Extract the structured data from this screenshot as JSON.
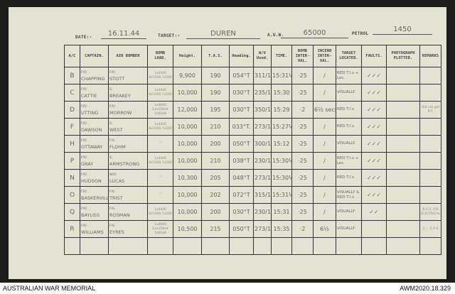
{
  "header": {
    "date_label": "DATE:-",
    "date": "16.11.44",
    "target_label": "TARGET:-",
    "target": "DUREN",
    "auw_label": "A.U.W.",
    "auw": "65000",
    "petrol_label": "PETROL",
    "petrol": "1450"
  },
  "columns": [
    "A/C",
    "CAPTAIN.",
    "AIR BOMBER",
    "BOMB LOAD.",
    "Height.",
    "T.A.S.",
    "Heading.",
    "W/V Used.",
    "TIME.",
    "BOMB INTER-VAL.",
    "INCEND INTER-VAL.",
    "TARGET LOCATED.",
    "FAULTS.",
    "PHOTOGRAPH PLOTTED.",
    "REMARKS"
  ],
  "rows": [
    [
      "B",
      "F/O",
      "CHAPPING",
      "F/O",
      "STOTT",
      "1x4000 6x1000 7x500",
      "9,900",
      "190",
      "054°T",
      "311/10",
      "15:31½",
      "·25",
      "/",
      "RED T.I.s + Loc.",
      "✓✓✓",
      "",
      ""
    ],
    [
      "C",
      "F/O",
      "CATTIE",
      "S.",
      "BREAKEY",
      "1x4000 6x1000 7x500",
      "10,000",
      "190",
      "030°T",
      "235/12",
      "15:30",
      "·25",
      "/",
      "VISUALLY.",
      "✓✓✓",
      "",
      ""
    ],
    [
      "D",
      "F/O",
      "UTTING",
      "F/O",
      "MORROW",
      "1x4000 14x150x4 1x60x9",
      "12,000",
      "195",
      "030°T",
      "350/15",
      "15:29",
      "·2",
      "6½ secs",
      "RED T.I.s",
      "✓✓✓",
      "",
      "Did not get P/T."
    ],
    [
      "F",
      "F/O",
      "DAWSON",
      "S.",
      "WEST",
      "1x4000 6x1000 7x500",
      "10,000",
      "210",
      "033°T.",
      "273/19",
      "15:27½",
      "·25",
      "/",
      "RED T.I.s",
      "✓✓✓",
      "",
      ""
    ],
    [
      "H",
      "F/O",
      "OTTAWAY",
      "F/S",
      "FLOHM",
      "\"",
      "10,000",
      "200",
      "050°T",
      "300/10",
      "15:12",
      "·25",
      "/",
      "VISUALLY.",
      "✓✓✓",
      "",
      ""
    ],
    [
      "P",
      "F/O",
      "GRAY",
      "S.",
      "ARMSTRONG",
      "1x4000 6x1000 7x500",
      "10,000",
      "210",
      "038°T",
      "230/14",
      "15:30½",
      "·25",
      "/",
      "RED T.I.s + Loc.",
      "✓✓✓",
      "",
      ""
    ],
    [
      "N",
      "F/O",
      "HUDSON",
      "W/O",
      "LUCAS",
      "\"",
      "10,300",
      "205",
      "048°T",
      "273/16",
      "15:30½",
      "·25",
      "/",
      "RED T.I.s",
      "✓✓✓",
      "",
      ""
    ],
    [
      "O",
      "F/O",
      "BASKERVILLE",
      "F/S",
      "TRIST",
      "\"",
      "10,000",
      "202",
      "072°T",
      "315/10",
      "15:31½",
      "·25",
      "/",
      "VISUALLY & RED T.I.s",
      "✓✓✓",
      "",
      ""
    ],
    [
      "Q",
      "F/O",
      "BAYLISS",
      "F/S",
      "ROSMAN",
      "1x4000 6x1000 7x500",
      "10,000",
      "200",
      "030°T",
      "230/10",
      "15:31",
      "·25",
      "/",
      "VISUALLY",
      "✓✓",
      "",
      "B.E.S. U/S ELECTRICAL"
    ],
    [
      "R",
      "F/O",
      "WILLIAMS",
      "F/S",
      "EYRES",
      "1x4000 14x150x4 1x60x9",
      "10,500",
      "215",
      "050°T",
      "273/18",
      "15:35",
      "·2",
      "6½",
      "VISUALLY",
      "",
      "",
      "2 ... 5.A.S"
    ]
  ],
  "footer": {
    "left": "AUSTRALIAN WAR MEMORIAL",
    "right": "AWM2020.18.329"
  }
}
